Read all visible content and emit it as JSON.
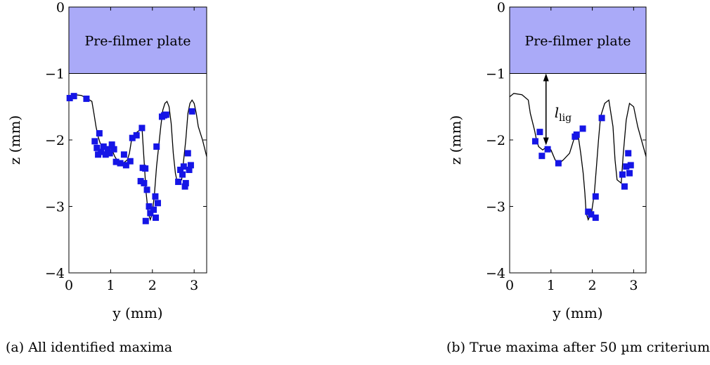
{
  "captions": {
    "a": "(a) All identified maxima",
    "b": "(b) True maxima after 50 µm criterium"
  },
  "colors": {
    "plate": "#aaaaf8",
    "marker": "#1515e6",
    "curve": "#000000"
  },
  "chart_data": [
    {
      "type": "scatter",
      "panel": "a",
      "caption": "(a) All identified maxima",
      "xlabel": "y (mm)",
      "ylabel": "z (mm)",
      "xlim": [
        0,
        3.3
      ],
      "ylim": [
        -4,
        0
      ],
      "xticks": [
        "0",
        "1",
        "2",
        "3"
      ],
      "yticks": [
        "0",
        "−1",
        "−2",
        "−3",
        "−4"
      ],
      "annotations": {
        "plate_label": "Pre-filmer plate",
        "plate_z_range": [
          -1,
          0
        ],
        "ligament_label": ""
      },
      "curve": [
        [
          0,
          -1.4
        ],
        [
          0.05,
          -1.35
        ],
        [
          0.15,
          -1.32
        ],
        [
          0.3,
          -1.33
        ],
        [
          0.45,
          -1.38
        ],
        [
          0.55,
          -1.42
        ],
        [
          0.6,
          -1.6
        ],
        [
          0.65,
          -1.8
        ],
        [
          0.7,
          -1.95
        ],
        [
          0.75,
          -2.05
        ],
        [
          0.85,
          -2.1
        ],
        [
          1.0,
          -2.1
        ],
        [
          1.1,
          -2.25
        ],
        [
          1.2,
          -2.35
        ],
        [
          1.3,
          -2.35
        ],
        [
          1.4,
          -2.3
        ],
        [
          1.45,
          -2.2
        ],
        [
          1.5,
          -2.0
        ],
        [
          1.55,
          -1.95
        ],
        [
          1.6,
          -1.9
        ],
        [
          1.7,
          -1.85
        ],
        [
          1.75,
          -1.8
        ],
        [
          1.8,
          -2.3
        ],
        [
          1.85,
          -2.8
        ],
        [
          1.9,
          -3.1
        ],
        [
          1.95,
          -3.2
        ],
        [
          2.0,
          -3.1
        ],
        [
          2.05,
          -2.8
        ],
        [
          2.1,
          -2.4
        ],
        [
          2.15,
          -2.1
        ],
        [
          2.2,
          -1.8
        ],
        [
          2.25,
          -1.55
        ],
        [
          2.3,
          -1.45
        ],
        [
          2.35,
          -1.42
        ],
        [
          2.4,
          -1.5
        ],
        [
          2.45,
          -1.75
        ],
        [
          2.5,
          -2.2
        ],
        [
          2.55,
          -2.5
        ],
        [
          2.6,
          -2.65
        ],
        [
          2.7,
          -2.6
        ],
        [
          2.75,
          -2.3
        ],
        [
          2.8,
          -2.0
        ],
        [
          2.85,
          -1.6
        ],
        [
          2.9,
          -1.45
        ],
        [
          2.95,
          -1.4
        ],
        [
          3.0,
          -1.45
        ],
        [
          3.05,
          -1.6
        ],
        [
          3.1,
          -1.8
        ],
        [
          3.2,
          -2.0
        ],
        [
          3.3,
          -2.25
        ]
      ],
      "maxima": [
        [
          0.02,
          -1.37
        ],
        [
          0.12,
          -1.34
        ],
        [
          0.42,
          -1.38
        ],
        [
          0.62,
          -2.02
        ],
        [
          0.67,
          -2.12
        ],
        [
          0.7,
          -2.22
        ],
        [
          0.73,
          -1.9
        ],
        [
          0.77,
          -2.18
        ],
        [
          0.83,
          -2.1
        ],
        [
          0.88,
          -2.22
        ],
        [
          0.93,
          -2.14
        ],
        [
          0.98,
          -2.2
        ],
        [
          1.03,
          -2.07
        ],
        [
          1.08,
          -2.14
        ],
        [
          1.13,
          -2.33
        ],
        [
          1.23,
          -2.35
        ],
        [
          1.32,
          -2.22
        ],
        [
          1.37,
          -2.38
        ],
        [
          1.47,
          -2.32
        ],
        [
          1.52,
          -1.97
        ],
        [
          1.62,
          -1.93
        ],
        [
          1.72,
          -2.62
        ],
        [
          1.75,
          -1.82
        ],
        [
          1.77,
          -2.42
        ],
        [
          1.8,
          -2.65
        ],
        [
          1.83,
          -2.43
        ],
        [
          1.84,
          -3.22
        ],
        [
          1.87,
          -2.75
        ],
        [
          1.92,
          -3.0
        ],
        [
          1.95,
          -3.1
        ],
        [
          2.03,
          -3.05
        ],
        [
          2.07,
          -2.85
        ],
        [
          2.08,
          -3.17
        ],
        [
          2.1,
          -2.1
        ],
        [
          2.13,
          -2.95
        ],
        [
          2.23,
          -1.65
        ],
        [
          2.28,
          -1.63
        ],
        [
          2.33,
          -1.62
        ],
        [
          2.62,
          -2.63
        ],
        [
          2.67,
          -2.45
        ],
        [
          2.72,
          -2.52
        ],
        [
          2.75,
          -2.4
        ],
        [
          2.78,
          -2.7
        ],
        [
          2.8,
          -2.65
        ],
        [
          2.85,
          -2.2
        ],
        [
          2.88,
          -2.45
        ],
        [
          2.92,
          -2.38
        ],
        [
          2.95,
          -1.57
        ]
      ]
    },
    {
      "type": "scatter",
      "panel": "b",
      "caption": "(b) True maxima after 50 µm criterium",
      "xlabel": "y (mm)",
      "ylabel": "z (mm)",
      "xlim": [
        0,
        3.3
      ],
      "ylim": [
        -4,
        0
      ],
      "xticks": [
        "0",
        "1",
        "2",
        "3"
      ],
      "yticks": [
        "0",
        "−1",
        "−2",
        "−3",
        "−4"
      ],
      "annotations": {
        "plate_label": "Pre-filmer plate",
        "plate_z_range": [
          -1,
          0
        ],
        "ligament_label": "l_lig"
      },
      "curve": [
        [
          0,
          -1.35
        ],
        [
          0.1,
          -1.3
        ],
        [
          0.3,
          -1.32
        ],
        [
          0.45,
          -1.4
        ],
        [
          0.5,
          -1.6
        ],
        [
          0.6,
          -1.85
        ],
        [
          0.65,
          -2.0
        ],
        [
          0.7,
          -2.1
        ],
        [
          0.8,
          -2.15
        ],
        [
          0.9,
          -2.1
        ],
        [
          1.0,
          -2.15
        ],
        [
          1.1,
          -2.3
        ],
        [
          1.2,
          -2.35
        ],
        [
          1.3,
          -2.3
        ],
        [
          1.45,
          -2.2
        ],
        [
          1.55,
          -2.0
        ],
        [
          1.65,
          -1.9
        ],
        [
          1.72,
          -2.2
        ],
        [
          1.78,
          -2.5
        ],
        [
          1.82,
          -2.8
        ],
        [
          1.85,
          -3.1
        ],
        [
          1.9,
          -3.2
        ],
        [
          1.98,
          -3.1
        ],
        [
          2.05,
          -2.8
        ],
        [
          2.1,
          -2.4
        ],
        [
          2.15,
          -2.0
        ],
        [
          2.2,
          -1.65
        ],
        [
          2.3,
          -1.45
        ],
        [
          2.4,
          -1.4
        ],
        [
          2.5,
          -1.8
        ],
        [
          2.55,
          -2.3
        ],
        [
          2.6,
          -2.6
        ],
        [
          2.7,
          -2.65
        ],
        [
          2.75,
          -2.2
        ],
        [
          2.82,
          -1.7
        ],
        [
          2.9,
          -1.45
        ],
        [
          3.0,
          -1.5
        ],
        [
          3.1,
          -1.8
        ],
        [
          3.3,
          -2.25
        ]
      ],
      "maxima": [
        [
          0.62,
          -2.02
        ],
        [
          0.73,
          -1.88
        ],
        [
          0.78,
          -2.24
        ],
        [
          0.92,
          -2.14
        ],
        [
          1.18,
          -2.35
        ],
        [
          1.58,
          -1.95
        ],
        [
          1.62,
          -1.92
        ],
        [
          1.77,
          -1.83
        ],
        [
          1.9,
          -3.08
        ],
        [
          1.97,
          -3.12
        ],
        [
          2.08,
          -2.85
        ],
        [
          2.08,
          -3.17
        ],
        [
          2.23,
          -1.67
        ],
        [
          2.73,
          -2.52
        ],
        [
          2.78,
          -2.7
        ],
        [
          2.82,
          -2.4
        ],
        [
          2.87,
          -2.2
        ],
        [
          2.9,
          -2.5
        ],
        [
          2.93,
          -2.38
        ]
      ]
    }
  ]
}
